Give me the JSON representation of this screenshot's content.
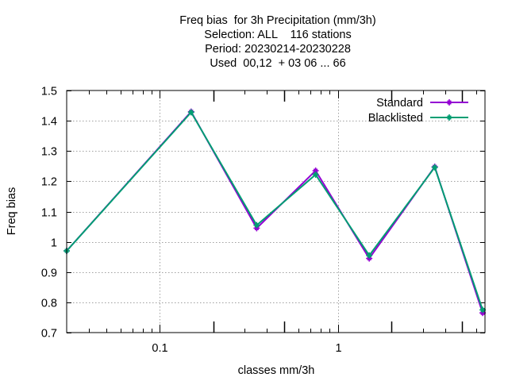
{
  "chart_data": {
    "type": "line",
    "title_lines": [
      "Freq bias  for 3h Precipitation (mm/3h)",
      "Selection: ALL    116 stations",
      "Period: 20230214-20230228",
      "Used  00,12  + 03 06 ... 66"
    ],
    "xlabel": "classes mm/3h",
    "ylabel": "Freq bias",
    "x_scale": "log",
    "xlim": [
      0.03,
      6.7
    ],
    "ylim": [
      0.7,
      1.5
    ],
    "x_tick_labels": [
      {
        "value": 0.1,
        "label": "0.1"
      },
      {
        "value": 1,
        "label": "1"
      }
    ],
    "y_ticks": [
      {
        "value": 0.7,
        "label": "0.7"
      },
      {
        "value": 0.8,
        "label": "0.8"
      },
      {
        "value": 0.9,
        "label": "0.9"
      },
      {
        "value": 1.0,
        "label": "1"
      },
      {
        "value": 1.1,
        "label": "1.1"
      },
      {
        "value": 1.2,
        "label": "1.2"
      },
      {
        "value": 1.3,
        "label": "1.3"
      },
      {
        "value": 1.4,
        "label": "1.4"
      },
      {
        "value": 1.5,
        "label": "1.5"
      }
    ],
    "x": [
      0.03,
      0.15,
      0.35,
      0.75,
      1.5,
      3.5,
      6.5
    ],
    "series": [
      {
        "name": "Standard",
        "color": "#9400d3",
        "marker": "plus-square",
        "values": [
          0.97,
          1.43,
          1.045,
          1.235,
          0.945,
          1.248,
          0.765
        ]
      },
      {
        "name": "Blacklisted",
        "color": "#009e73",
        "marker": "plus-square",
        "values": [
          0.97,
          1.428,
          1.055,
          1.222,
          0.955,
          1.246,
          0.775
        ]
      }
    ],
    "grid": true,
    "legend_position": "top-right"
  }
}
